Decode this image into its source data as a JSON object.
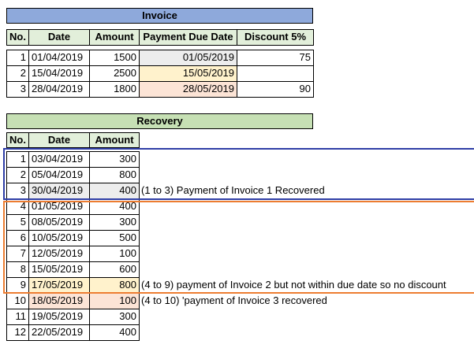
{
  "invoice": {
    "title": "Invoice",
    "headers": [
      "No.",
      "Date",
      "Amount",
      "Payment Due Date",
      "Discount 5%"
    ],
    "rows": [
      {
        "no": "1",
        "date": "01/04/2019",
        "amount": "1500",
        "due": "01/05/2019",
        "discount": "75"
      },
      {
        "no": "2",
        "date": "15/04/2019",
        "amount": "2500",
        "due": "15/05/2019",
        "discount": ""
      },
      {
        "no": "3",
        "date": "28/04/2019",
        "amount": "1800",
        "due": "28/05/2019",
        "discount": "90"
      }
    ]
  },
  "recovery": {
    "title": "Recovery",
    "headers": [
      "No.",
      "Date",
      "Amount"
    ],
    "rows": [
      {
        "no": "1",
        "date": "03/04/2019",
        "amount": "300"
      },
      {
        "no": "2",
        "date": "05/04/2019",
        "amount": "800"
      },
      {
        "no": "3",
        "date": "30/04/2019",
        "amount": "400"
      },
      {
        "no": "4",
        "date": "01/05/2019",
        "amount": "400"
      },
      {
        "no": "5",
        "date": "08/05/2019",
        "amount": "300"
      },
      {
        "no": "6",
        "date": "10/05/2019",
        "amount": "500"
      },
      {
        "no": "7",
        "date": "12/05/2019",
        "amount": "100"
      },
      {
        "no": "8",
        "date": "15/05/2019",
        "amount": "600"
      },
      {
        "no": "9",
        "date": "17/05/2019",
        "amount": "800"
      },
      {
        "no": "10",
        "date": "18/05/2019",
        "amount": "100"
      },
      {
        "no": "11",
        "date": "19/05/2019",
        "amount": "300"
      },
      {
        "no": "12",
        "date": "22/05/2019",
        "amount": "400"
      }
    ],
    "notes": {
      "group1": "(1 to 3) Payment of Invoice 1 Recovered",
      "group2": "(4 to 9) payment of Invoice 2 but not within due date so no discount",
      "group3": "(4 to 10) 'payment of Invoice 3 recovered"
    }
  },
  "colors": {
    "title_fill": "#8ea9db",
    "header_fill": "#e2efda",
    "recovery_title_fill": "#c6e0b4",
    "gray_fill": "#ededed",
    "yellow_fill": "#fff2cc",
    "peach_fill": "#fce4d6",
    "blue_border": "#2f3ea6",
    "orange_border": "#ed7d31"
  }
}
